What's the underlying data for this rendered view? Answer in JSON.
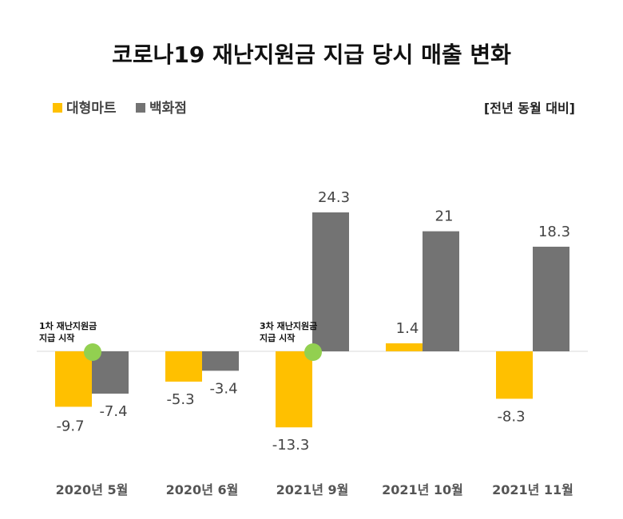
{
  "chart_data": {
    "type": "bar",
    "title": "코로나19 재난지원금 지급 당시 매출 변화",
    "unit_note": "[전년 동월 대비]",
    "categories": [
      "2020년 5월",
      "2020년 6월",
      "2021년 9월",
      "2021년 10월",
      "2021년 11월"
    ],
    "series": [
      {
        "name": "대형마트",
        "color": "#FFC000",
        "values": [
          -9.7,
          -5.3,
          -13.3,
          1.4,
          -8.3
        ]
      },
      {
        "name": "백화점",
        "color": "#737373",
        "values": [
          -7.4,
          -3.4,
          24.3,
          21,
          18.3
        ]
      }
    ],
    "value_labels": [
      [
        "-9.7",
        "-5.3",
        "-13.3",
        "1.4",
        "-8.3"
      ],
      [
        "-7.4",
        "-3.4",
        "24.3",
        "21",
        "18.3"
      ]
    ],
    "annotations": [
      {
        "category_index": 0,
        "lines": [
          "1차 재난지원금",
          "지급 시작"
        ],
        "marker_color": "#92D050"
      },
      {
        "category_index": 2,
        "lines": [
          "3차 재난지원금",
          "지급 시작"
        ],
        "marker_color": "#92D050"
      }
    ],
    "axis_color": "#D9D9D9",
    "legend_position": "top-left"
  }
}
